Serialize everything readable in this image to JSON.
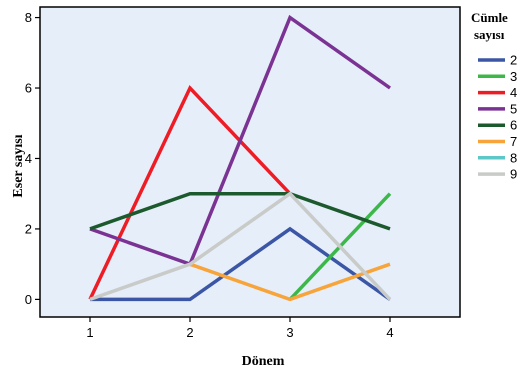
{
  "chart_data": {
    "type": "line",
    "title": "",
    "xlabel": "Dönem",
    "ylabel": "Eser sayısı",
    "x": [
      1,
      2,
      3,
      4
    ],
    "xticks": [
      "1",
      "2",
      "3",
      "4"
    ],
    "xlim": [
      0.5,
      4.7
    ],
    "ylim": [
      -0.5,
      8.3
    ],
    "yticks": [
      "0",
      "2",
      "4",
      "6",
      "8"
    ],
    "grid": false,
    "background_color": "#e6eefa",
    "legend": {
      "title_line1": "Cümle",
      "title_line2": "sayısı",
      "placement": "right"
    },
    "series": [
      {
        "name": "2",
        "color": "#3b56a5",
        "values": [
          0,
          0,
          2,
          0
        ]
      },
      {
        "name": "3",
        "color": "#3cb84a",
        "values": [
          null,
          null,
          0,
          3
        ]
      },
      {
        "name": "4",
        "color": "#ee1c25",
        "values": [
          0,
          6,
          3,
          null
        ]
      },
      {
        "name": "5",
        "color": "#7b3393",
        "values": [
          2,
          1,
          8,
          6
        ]
      },
      {
        "name": "6",
        "color": "#1c5a2e",
        "values": [
          2,
          3,
          3,
          2
        ]
      },
      {
        "name": "7",
        "color": "#f7a43a",
        "values": [
          null,
          1,
          0,
          1
        ]
      },
      {
        "name": "8",
        "color": "#5ec8c8",
        "values": [
          null,
          null,
          null,
          null
        ]
      },
      {
        "name": "9",
        "color": "#c8cbc8",
        "values": [
          0,
          1,
          3,
          0
        ]
      }
    ]
  }
}
